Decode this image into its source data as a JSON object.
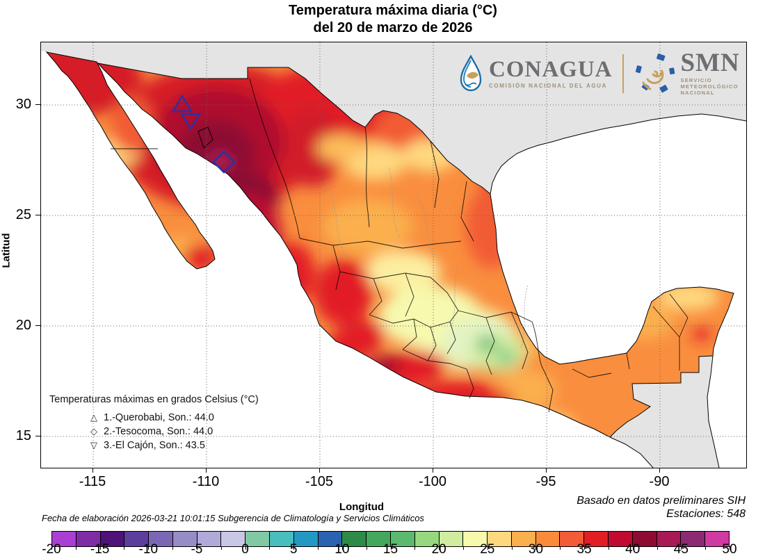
{
  "title": {
    "line1": "Temperatura máxima diaria (°C)",
    "line2": "del 20 de marzo de 2026"
  },
  "logos": {
    "conagua": {
      "name": "CONAGUA",
      "tagline": "COMISIÓN NACIONAL DEL AGUA"
    },
    "smn": {
      "name": "SMN",
      "tagline1": "SERVICIO",
      "tagline2": "METEOROLÓGICO",
      "tagline3": "NACIONAL"
    }
  },
  "axes": {
    "x_label": "Longitud",
    "y_label": "Latitud",
    "x_ticks": [
      "-115",
      "-110",
      "-105",
      "-100",
      "-95",
      "-90"
    ],
    "y_ticks": [
      "30",
      "25",
      "20",
      "15"
    ]
  },
  "station_legend": {
    "title": "Temperaturas máximas en grados Celsius (°C)",
    "items": [
      {
        "marker": "triangle-up",
        "label": "1.-Querobabi, Son.: 44.0"
      },
      {
        "marker": "diamond",
        "label": "2.-Tesocoma, Son.: 44.0"
      },
      {
        "marker": "triangle-down",
        "label": "3.-El Cajón, Son.: 43.5"
      }
    ]
  },
  "footer": {
    "left_note": "Fecha de elaboración 2026-03-21 10:01:15 Subgerencia de Climatología y Servicios Climáticos",
    "right_note1": "Basado en datos preliminares SIH",
    "right_note2": "Estaciones:  548"
  },
  "colorbar": {
    "min": -20,
    "max": 50,
    "step": 2.5,
    "tick_labels": [
      "-20",
      "-15",
      "-10",
      "-5",
      "0",
      "5",
      "10",
      "15",
      "20",
      "25",
      "30",
      "35",
      "40",
      "45",
      "50"
    ],
    "colors": [
      "#a93fd3",
      "#7f2da4",
      "#4e1279",
      "#5d3e9c",
      "#7b68b4",
      "#968dc6",
      "#afaad8",
      "#c9c7e6",
      "#80c9a4",
      "#4abdbe",
      "#2398c5",
      "#2c63b0",
      "#2e8b47",
      "#44a85c",
      "#5cb96d",
      "#96d77f",
      "#cfec9f",
      "#f6f9ae",
      "#fed87f",
      "#fbaf4e",
      "#fa8b3c",
      "#f25c36",
      "#e21e25",
      "#c00a30",
      "#8c0c32",
      "#a81a53",
      "#8c2a73",
      "#cf3ba0"
    ]
  },
  "map": {
    "outside_land_color": "#e4e4e4",
    "ocean_color": "#ffffff",
    "base_land_color": "#f98e3e",
    "marker_color": "#2733a8"
  }
}
